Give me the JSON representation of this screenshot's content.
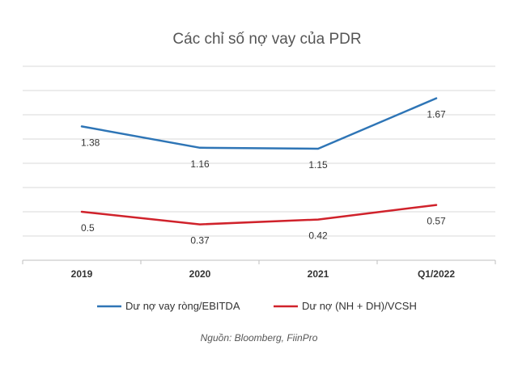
{
  "chart_data": {
    "type": "line",
    "title": "Các chỉ số nợ vay của PDR",
    "categories": [
      "2019",
      "2020",
      "2021",
      "Q1/2022"
    ],
    "ylim": [
      0,
      2
    ],
    "grid": true,
    "legend_position": "bottom",
    "series": [
      {
        "name": "Dư nợ vay ròng/EBITDA",
        "values": [
          1.38,
          1.16,
          1.15,
          1.67
        ],
        "labels": [
          "1.38",
          "1.16",
          "1.15",
          "1.67"
        ],
        "color": "#2e75b6"
      },
      {
        "name": "Dư nợ (NH + DH)/VCSH",
        "values": [
          0.5,
          0.37,
          0.42,
          0.57
        ],
        "labels": [
          "0.5",
          "0.37",
          "0.42",
          "0.57"
        ],
        "color": "#d0222b"
      }
    ],
    "source": "Nguồn: Bloomberg, FiinPro"
  }
}
